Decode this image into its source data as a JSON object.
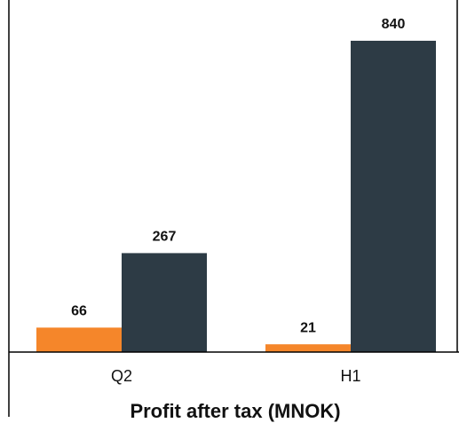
{
  "chart_data": {
    "type": "bar",
    "title": "Profit after tax (MNOK)",
    "categories": [
      "Q2",
      "H1"
    ],
    "series": [
      {
        "color": "#f5862a",
        "values": [
          66,
          21
        ]
      },
      {
        "color": "#2d3b45",
        "values": [
          267,
          840
        ]
      }
    ],
    "ylim": [
      0,
      950
    ]
  }
}
